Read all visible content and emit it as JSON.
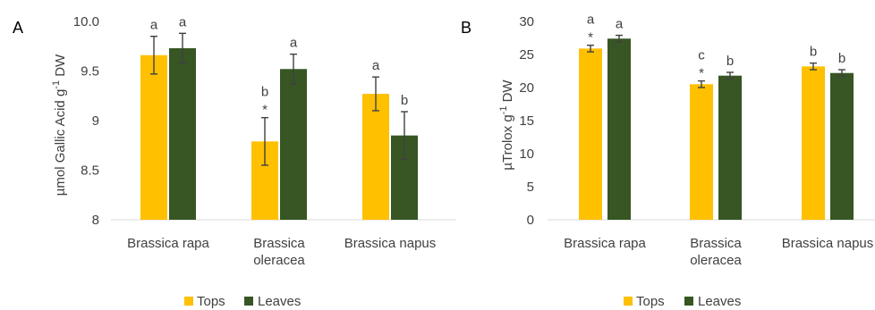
{
  "colors": {
    "tops": "#ffc000",
    "leaves": "#375623",
    "axis": "#d9d9d9",
    "text": "#404040"
  },
  "chart_data": [
    {
      "type": "bar",
      "panel": "A",
      "ylabel": "µmol Gallic Acid g",
      "ylabel_sup": "-1",
      "ylabel_suffix": " DW",
      "ylim": [
        8,
        10
      ],
      "yticks": [
        "8",
        "8.5",
        "9",
        "9.5",
        "10.0"
      ],
      "ytick_values": [
        8,
        8.5,
        9,
        9.5,
        10
      ],
      "grid": false,
      "legend": "bottom-center",
      "categories": [
        {
          "line1": "Brassica rapa",
          "line2": ""
        },
        {
          "line1": "Brassica",
          "line2": "oleracea"
        },
        {
          "line1": "Brassica napus",
          "line2": ""
        }
      ],
      "series": [
        {
          "name": "Tops",
          "values": [
            9.66,
            8.79,
            9.27
          ],
          "errors": [
            0.19,
            0.24,
            0.17
          ],
          "labels": [
            "a",
            "b",
            "a"
          ],
          "stars": [
            "",
            "*",
            ""
          ]
        },
        {
          "name": "Leaves",
          "values": [
            9.73,
            9.52,
            8.85
          ],
          "errors": [
            0.15,
            0.15,
            0.24
          ],
          "labels": [
            "a",
            "a",
            "b"
          ],
          "stars": [
            "",
            "",
            ""
          ]
        }
      ]
    },
    {
      "type": "bar",
      "panel": "B",
      "ylabel": "µTrolox g",
      "ylabel_sup": "-1",
      "ylabel_suffix": " DW",
      "ylim": [
        0,
        30
      ],
      "yticks": [
        "0",
        "5",
        "10",
        "15",
        "20",
        "25",
        "30"
      ],
      "ytick_values": [
        0,
        5,
        10,
        15,
        20,
        25,
        30
      ],
      "grid": false,
      "legend": "bottom-center",
      "categories": [
        {
          "line1": "Brassica rapa",
          "line2": ""
        },
        {
          "line1": "Brassica",
          "line2": "oleracea"
        },
        {
          "line1": "Brassica napus",
          "line2": ""
        }
      ],
      "series": [
        {
          "name": "Tops",
          "values": [
            25.9,
            20.5,
            23.2
          ],
          "errors": [
            0.5,
            0.5,
            0.5
          ],
          "labels": [
            "a",
            "c",
            "b"
          ],
          "stars": [
            "*",
            "*",
            ""
          ]
        },
        {
          "name": "Leaves",
          "values": [
            27.4,
            21.8,
            22.2
          ],
          "errors": [
            0.5,
            0.5,
            0.5
          ],
          "labels": [
            "a",
            "b",
            "b"
          ],
          "stars": [
            "",
            "",
            ""
          ]
        }
      ]
    }
  ]
}
